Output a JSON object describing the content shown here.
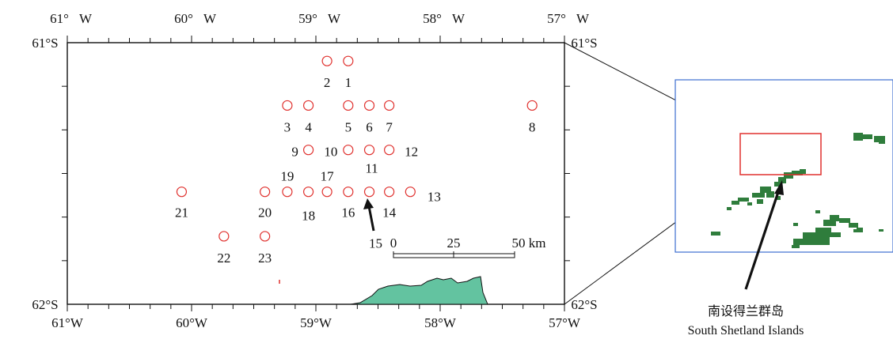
{
  "map": {
    "top_lon_labels": [
      {
        "deg": "61°",
        "hem": "W",
        "lon": -61
      },
      {
        "deg": "60°",
        "hem": "W",
        "lon": -60
      },
      {
        "deg": "59°",
        "hem": "W",
        "lon": -59
      },
      {
        "deg": "58°",
        "hem": "W",
        "lon": -58
      },
      {
        "deg": "57°",
        "hem": "W",
        "lon": -57
      }
    ],
    "bottom_lon_labels": [
      {
        "text": "61°W",
        "lon": -61
      },
      {
        "text": "60°W",
        "lon": -60
      },
      {
        "text": "59°W",
        "lon": -59
      },
      {
        "text": "58°W",
        "lon": -58
      },
      {
        "text": "57°W",
        "lon": -57
      }
    ],
    "lat_labels": [
      {
        "text": "61°S",
        "lat": -61
      },
      {
        "text": "62°S",
        "lat": -62
      }
    ],
    "lon_range": [
      -61,
      -57
    ],
    "lat_range": [
      -62,
      -61
    ],
    "station_color": "#e0312e",
    "stations": [
      {
        "label": "1",
        "lon": -58.74,
        "lat": -61.07,
        "label_dx": 0
      },
      {
        "label": "2",
        "lon": -58.91,
        "lat": -61.07,
        "label_dx": 0
      },
      {
        "label": "3",
        "lon": -59.23,
        "lat": -61.24,
        "label_dx": 0
      },
      {
        "label": "4",
        "lon": -59.06,
        "lat": -61.24,
        "label_dx": 0
      },
      {
        "label": "5",
        "lon": -58.74,
        "lat": -61.24,
        "label_dx": 0
      },
      {
        "label": "6",
        "lon": -58.57,
        "lat": -61.24,
        "label_dx": 0
      },
      {
        "label": "7",
        "lon": -58.41,
        "lat": -61.24,
        "label_dx": 0
      },
      {
        "label": "8",
        "lon": -57.26,
        "lat": -61.24,
        "label_dx": 0
      },
      {
        "label": "9",
        "lon": -59.06,
        "lat": -61.41,
        "label_dx": -1
      },
      {
        "label": "10",
        "lon": -58.74,
        "lat": -61.41,
        "label_dx": -1
      },
      {
        "label": "11",
        "lon": -58.57,
        "lat": -61.41,
        "label_dx": 0
      },
      {
        "label": "12",
        "lon": -58.41,
        "lat": -61.41,
        "label_dx": 1
      },
      {
        "label": "13",
        "lon": -58.24,
        "lat": -61.57,
        "label_dx": 1
      },
      {
        "label": "14",
        "lon": -58.41,
        "lat": -61.57,
        "label_dx": 0
      },
      {
        "label": "15",
        "lon": -58.57,
        "lat": -61.57,
        "label_dx": 0
      },
      {
        "label": "16",
        "lon": -58.74,
        "lat": -61.57,
        "label_dx": 0
      },
      {
        "label": "17",
        "lon": -58.91,
        "lat": -61.57,
        "label_dx": 0
      },
      {
        "label": "18",
        "lon": -59.06,
        "lat": -61.57,
        "label_dx": 0
      },
      {
        "label": "19",
        "lon": -59.23,
        "lat": -61.57,
        "label_dx": 0
      },
      {
        "label": "20",
        "lon": -59.41,
        "lat": -61.57,
        "label_dx": 0
      },
      {
        "label": "21",
        "lon": -60.08,
        "lat": -61.57,
        "label_dx": 0
      },
      {
        "label": "22",
        "lon": -59.74,
        "lat": -61.74,
        "label_dx": 0
      },
      {
        "label": "23",
        "lon": -59.41,
        "lat": -61.74,
        "label_dx": 0
      }
    ],
    "scale_bar": {
      "ticks": [
        "0",
        "25",
        "50 km"
      ]
    },
    "land_color": "#63c3a0",
    "inset_land_color": "#2f7d3c",
    "inset_frame_color": "#3d6fd0",
    "inset_box_color": "#e0312e"
  },
  "inset_caption": {
    "cn": "南设得兰群岛",
    "en": "South Shetland Islands"
  }
}
